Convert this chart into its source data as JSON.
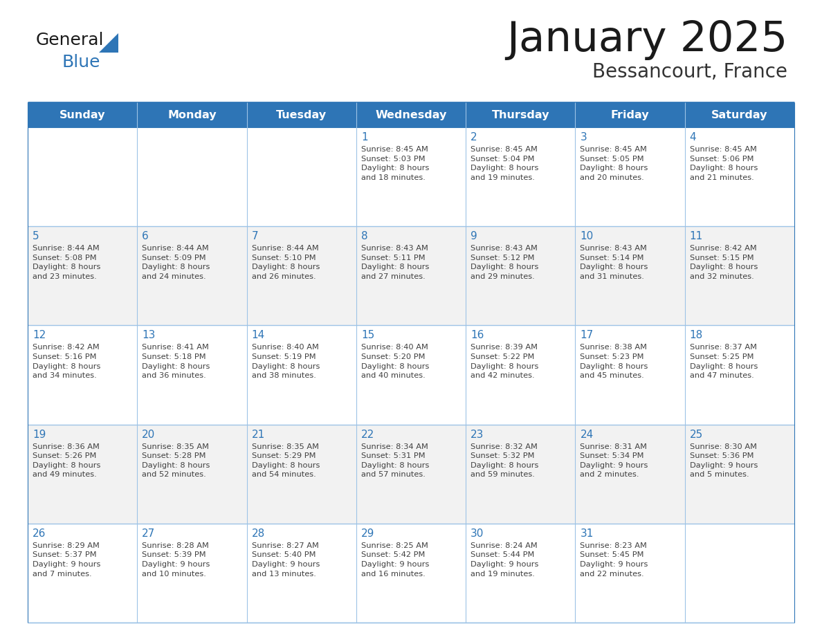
{
  "title": "January 2025",
  "subtitle": "Bessancourt, France",
  "header_bg": "#2E75B6",
  "header_text_color": "#FFFFFF",
  "cell_bg_even": "#FFFFFF",
  "cell_bg_odd": "#F2F2F2",
  "border_color_dark": "#2E75B6",
  "border_color_light": "#9DC3E6",
  "day_names": [
    "Sunday",
    "Monday",
    "Tuesday",
    "Wednesday",
    "Thursday",
    "Friday",
    "Saturday"
  ],
  "title_color": "#1a1a1a",
  "subtitle_color": "#333333",
  "day_number_color": "#2E75B6",
  "text_color": "#404040",
  "logo_general_color": "#1a1a1a",
  "logo_blue_color": "#2E75B6",
  "weeks": [
    [
      {
        "day": "",
        "info": ""
      },
      {
        "day": "",
        "info": ""
      },
      {
        "day": "",
        "info": ""
      },
      {
        "day": "1",
        "info": "Sunrise: 8:45 AM\nSunset: 5:03 PM\nDaylight: 8 hours\nand 18 minutes."
      },
      {
        "day": "2",
        "info": "Sunrise: 8:45 AM\nSunset: 5:04 PM\nDaylight: 8 hours\nand 19 minutes."
      },
      {
        "day": "3",
        "info": "Sunrise: 8:45 AM\nSunset: 5:05 PM\nDaylight: 8 hours\nand 20 minutes."
      },
      {
        "day": "4",
        "info": "Sunrise: 8:45 AM\nSunset: 5:06 PM\nDaylight: 8 hours\nand 21 minutes."
      }
    ],
    [
      {
        "day": "5",
        "info": "Sunrise: 8:44 AM\nSunset: 5:08 PM\nDaylight: 8 hours\nand 23 minutes."
      },
      {
        "day": "6",
        "info": "Sunrise: 8:44 AM\nSunset: 5:09 PM\nDaylight: 8 hours\nand 24 minutes."
      },
      {
        "day": "7",
        "info": "Sunrise: 8:44 AM\nSunset: 5:10 PM\nDaylight: 8 hours\nand 26 minutes."
      },
      {
        "day": "8",
        "info": "Sunrise: 8:43 AM\nSunset: 5:11 PM\nDaylight: 8 hours\nand 27 minutes."
      },
      {
        "day": "9",
        "info": "Sunrise: 8:43 AM\nSunset: 5:12 PM\nDaylight: 8 hours\nand 29 minutes."
      },
      {
        "day": "10",
        "info": "Sunrise: 8:43 AM\nSunset: 5:14 PM\nDaylight: 8 hours\nand 31 minutes."
      },
      {
        "day": "11",
        "info": "Sunrise: 8:42 AM\nSunset: 5:15 PM\nDaylight: 8 hours\nand 32 minutes."
      }
    ],
    [
      {
        "day": "12",
        "info": "Sunrise: 8:42 AM\nSunset: 5:16 PM\nDaylight: 8 hours\nand 34 minutes."
      },
      {
        "day": "13",
        "info": "Sunrise: 8:41 AM\nSunset: 5:18 PM\nDaylight: 8 hours\nand 36 minutes."
      },
      {
        "day": "14",
        "info": "Sunrise: 8:40 AM\nSunset: 5:19 PM\nDaylight: 8 hours\nand 38 minutes."
      },
      {
        "day": "15",
        "info": "Sunrise: 8:40 AM\nSunset: 5:20 PM\nDaylight: 8 hours\nand 40 minutes."
      },
      {
        "day": "16",
        "info": "Sunrise: 8:39 AM\nSunset: 5:22 PM\nDaylight: 8 hours\nand 42 minutes."
      },
      {
        "day": "17",
        "info": "Sunrise: 8:38 AM\nSunset: 5:23 PM\nDaylight: 8 hours\nand 45 minutes."
      },
      {
        "day": "18",
        "info": "Sunrise: 8:37 AM\nSunset: 5:25 PM\nDaylight: 8 hours\nand 47 minutes."
      }
    ],
    [
      {
        "day": "19",
        "info": "Sunrise: 8:36 AM\nSunset: 5:26 PM\nDaylight: 8 hours\nand 49 minutes."
      },
      {
        "day": "20",
        "info": "Sunrise: 8:35 AM\nSunset: 5:28 PM\nDaylight: 8 hours\nand 52 minutes."
      },
      {
        "day": "21",
        "info": "Sunrise: 8:35 AM\nSunset: 5:29 PM\nDaylight: 8 hours\nand 54 minutes."
      },
      {
        "day": "22",
        "info": "Sunrise: 8:34 AM\nSunset: 5:31 PM\nDaylight: 8 hours\nand 57 minutes."
      },
      {
        "day": "23",
        "info": "Sunrise: 8:32 AM\nSunset: 5:32 PM\nDaylight: 8 hours\nand 59 minutes."
      },
      {
        "day": "24",
        "info": "Sunrise: 8:31 AM\nSunset: 5:34 PM\nDaylight: 9 hours\nand 2 minutes."
      },
      {
        "day": "25",
        "info": "Sunrise: 8:30 AM\nSunset: 5:36 PM\nDaylight: 9 hours\nand 5 minutes."
      }
    ],
    [
      {
        "day": "26",
        "info": "Sunrise: 8:29 AM\nSunset: 5:37 PM\nDaylight: 9 hours\nand 7 minutes."
      },
      {
        "day": "27",
        "info": "Sunrise: 8:28 AM\nSunset: 5:39 PM\nDaylight: 9 hours\nand 10 minutes."
      },
      {
        "day": "28",
        "info": "Sunrise: 8:27 AM\nSunset: 5:40 PM\nDaylight: 9 hours\nand 13 minutes."
      },
      {
        "day": "29",
        "info": "Sunrise: 8:25 AM\nSunset: 5:42 PM\nDaylight: 9 hours\nand 16 minutes."
      },
      {
        "day": "30",
        "info": "Sunrise: 8:24 AM\nSunset: 5:44 PM\nDaylight: 9 hours\nand 19 minutes."
      },
      {
        "day": "31",
        "info": "Sunrise: 8:23 AM\nSunset: 5:45 PM\nDaylight: 9 hours\nand 22 minutes."
      },
      {
        "day": "",
        "info": ""
      }
    ]
  ]
}
